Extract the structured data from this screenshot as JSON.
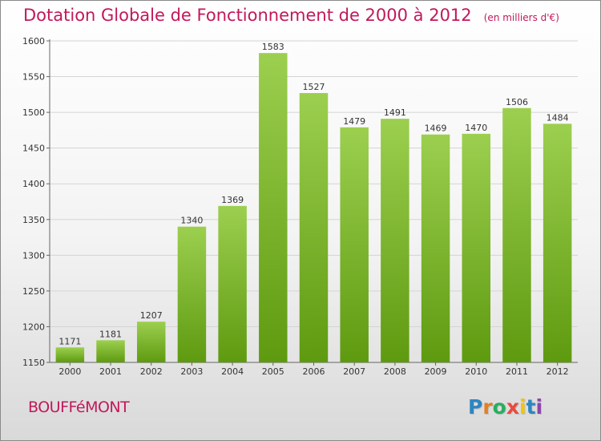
{
  "header": {
    "title": "Dotation Globale de Fonctionnement de 2000 à 2012",
    "subtitle": "(en milliers d'€)"
  },
  "footer": {
    "commune": "BOUFFéMONT",
    "logo_letters": [
      {
        "ch": "P",
        "color": "#2e86c1"
      },
      {
        "ch": "r",
        "color": "#e67e22"
      },
      {
        "ch": "o",
        "color": "#27ae60"
      },
      {
        "ch": "x",
        "color": "#e74c3c"
      },
      {
        "ch": "i",
        "color": "#f1c40f"
      },
      {
        "ch": "t",
        "color": "#2e86c1"
      },
      {
        "ch": "i",
        "color": "#8e44ad"
      }
    ]
  },
  "chart_data": {
    "type": "bar",
    "title": "Dotation Globale de Fonctionnement de 2000 à 2012",
    "subtitle": "(en milliers d'€)",
    "categories": [
      "2000",
      "2001",
      "2002",
      "2003",
      "2004",
      "2005",
      "2006",
      "2007",
      "2008",
      "2009",
      "2010",
      "2011",
      "2012"
    ],
    "values": [
      1171,
      1181,
      1207,
      1340,
      1369,
      1583,
      1527,
      1479,
      1491,
      1469,
      1470,
      1506,
      1484
    ],
    "ylim": [
      1150,
      1600
    ],
    "yticks": [
      1150,
      1200,
      1250,
      1300,
      1350,
      1400,
      1450,
      1500,
      1550,
      1600
    ],
    "grid": true,
    "bar_color_top": "#9ccf4f",
    "bar_color_bottom": "#5e9a10",
    "title_color": "#c2185b"
  }
}
